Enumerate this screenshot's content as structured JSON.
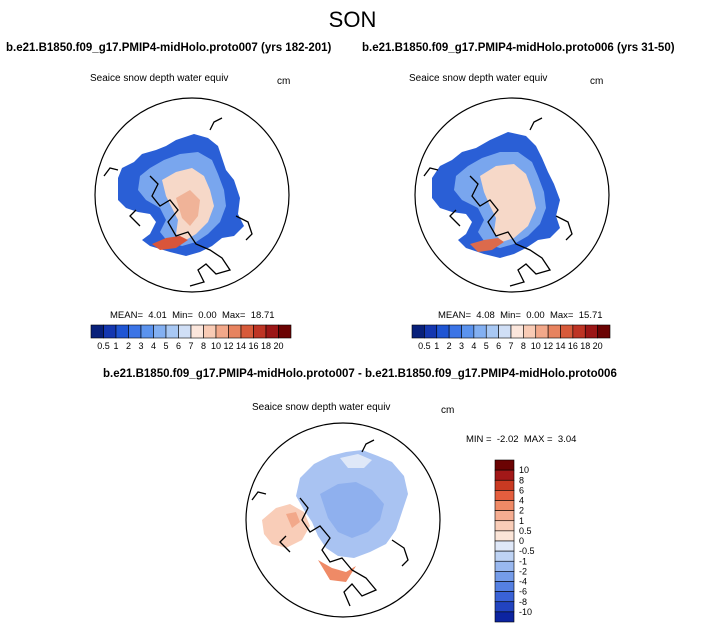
{
  "season": "SON",
  "panels": [
    {
      "title": "b.e21.B1850.f09_g17.PMIP4-midHolo.proto007 (yrs 182-201)",
      "variable": "Seaice snow depth water equiv",
      "units": "cm",
      "stats": {
        "mean_label": "MEAN=",
        "mean": "4.01",
        "min_label": "Min=",
        "min": "0.00",
        "max_label": "Max=",
        "max": "18.71"
      }
    },
    {
      "title": "b.e21.B1850.f09_g17.PMIP4-midHolo.proto006 (yrs 31-50)",
      "variable": "Seaice snow depth water equiv",
      "units": "cm",
      "stats": {
        "mean_label": "MEAN=",
        "mean": "4.08",
        "min_label": "Min=",
        "min": "0.00",
        "max_label": "Max=",
        "max": "15.71"
      }
    }
  ],
  "diff": {
    "title": "b.e21.B1850.f09_g17.PMIP4-midHolo.proto007 - b.e21.B1850.f09_g17.PMIP4-midHolo.proto006",
    "variable": "Seaice snow depth water equiv",
    "units": "cm",
    "stats": {
      "min_label": "MIN =",
      "min": "-2.02",
      "max_label": "MAX =",
      "max": "3.04"
    }
  },
  "colorbar_abs": {
    "labels": [
      "0.5",
      "1",
      "2",
      "3",
      "4",
      "5",
      "6",
      "7",
      "8",
      "10",
      "12",
      "14",
      "16",
      "18",
      "20"
    ],
    "colors": [
      "#08207a",
      "#1437b0",
      "#1f55d3",
      "#3b74e6",
      "#5b93ee",
      "#83b0f2",
      "#a8c8f4",
      "#d0dff6",
      "#fbe6dc",
      "#f9cbb5",
      "#f2a88a",
      "#e7835f",
      "#d75a3a",
      "#be3424",
      "#9b1616",
      "#6b0303"
    ]
  },
  "colorbar_diff": {
    "labels": [
      "10",
      "8",
      "6",
      "4",
      "2",
      "1",
      "0.5",
      "0",
      "-0.5",
      "-1",
      "-2",
      "-4",
      "-6",
      "-8",
      "-10"
    ],
    "colors": [
      "#6b0303",
      "#a21818",
      "#c93a22",
      "#e45e3e",
      "#ef8a66",
      "#f5ad91",
      "#f9cdb8",
      "#fbe5d8",
      "#dfe8f8",
      "#bed3f4",
      "#99b8ef",
      "#759ce9",
      "#5580e2",
      "#3a62d6",
      "#2244c0",
      "#0c24a0"
    ]
  },
  "chart_data": [
    {
      "type": "heatmap",
      "projection": "north polar stereographic",
      "title": "b.e21.B1850.f09_g17.PMIP4-midHolo.proto007 (yrs 182-201)",
      "variable": "Seaice snow depth water equiv",
      "units": "cm",
      "mean": 4.01,
      "min": 0.0,
      "max": 18.71
    },
    {
      "type": "heatmap",
      "projection": "north polar stereographic",
      "title": "b.e21.B1850.f09_g17.PMIP4-midHolo.proto006 (yrs 31-50)",
      "variable": "Seaice snow depth water equiv",
      "units": "cm",
      "mean": 4.08,
      "min": 0.0,
      "max": 15.71
    },
    {
      "type": "heatmap",
      "projection": "north polar stereographic",
      "title": "b.e21.B1850.f09_g17.PMIP4-midHolo.proto007 - b.e21.B1850.f09_g17.PMIP4-midHolo.proto006",
      "variable": "Seaice snow depth water equiv",
      "units": "cm",
      "min": -2.02,
      "max": 3.04
    }
  ]
}
